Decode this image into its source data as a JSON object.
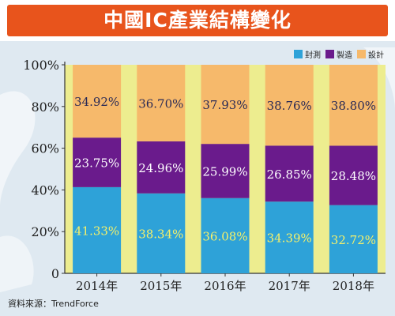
{
  "header": {
    "title": "中國IC產業結構變化"
  },
  "footer": {
    "source": "資料來源：TrendForce"
  },
  "colors": {
    "banner": "#e8541c",
    "plot_background": "#eded8f",
    "packaging": "#2ea2d8",
    "manufacturing": "#6a1b8c",
    "design": "#f6b96b"
  },
  "chart_data": {
    "type": "bar",
    "stacked": true,
    "title": "中國IC產業結構變化",
    "categories": [
      "2014年",
      "2015年",
      "2016年",
      "2017年",
      "2018年"
    ],
    "series": [
      {
        "name": "封測",
        "values": [
          41.33,
          38.34,
          36.08,
          34.39,
          32.72
        ],
        "labels": [
          "41.33%",
          "38.34%",
          "36.08%",
          "34.39%",
          "32.72%"
        ]
      },
      {
        "name": "製造",
        "values": [
          23.75,
          24.96,
          25.99,
          26.85,
          28.48
        ],
        "labels": [
          "23.75%",
          "24.96%",
          "25.99%",
          "26.85%",
          "28.48%"
        ]
      },
      {
        "name": "設計",
        "values": [
          34.92,
          36.7,
          37.93,
          38.76,
          38.8
        ],
        "labels": [
          "34.92%",
          "36.70%",
          "37.93%",
          "38.76%",
          "38.80%"
        ]
      }
    ],
    "ylim": [
      0,
      100
    ],
    "yticks": [
      0,
      20,
      40,
      60,
      80,
      100
    ],
    "ytick_labels": [
      "0",
      "20%",
      "40%",
      "60%",
      "80%",
      "100%"
    ],
    "legend_position": "top-right",
    "grid": false
  }
}
